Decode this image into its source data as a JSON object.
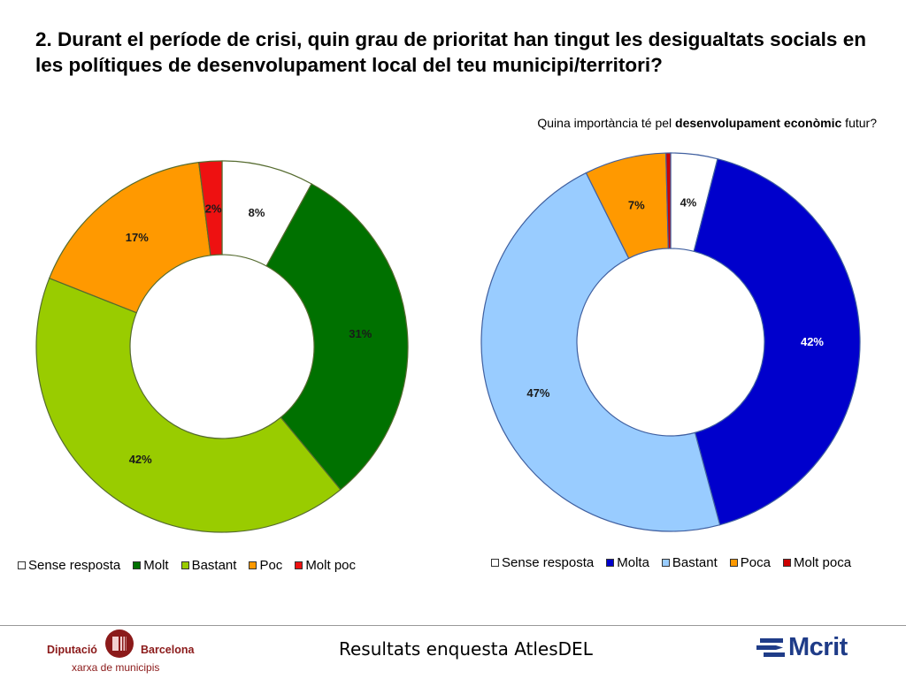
{
  "title": "2. Durant el període de crisi, quin grau de prioritat han tingut les desigualtats socials en les polítiques de desenvolupament local del teu municipi/territori?",
  "subtitle": {
    "prefix": "Quina importància té pel ",
    "bold": "desenvolupament econòmic",
    "suffix": " futur?"
  },
  "footer": {
    "text": "Resultats enquesta AtlesDEL",
    "logo_left_name1": "Diputació",
    "logo_left_name2": "Barcelona",
    "logo_left_sub": "xarxa de municipis",
    "logo_right_name": "Mcrit"
  },
  "chart_data": [
    {
      "type": "pie",
      "donut": true,
      "categories": [
        "Sense resposta",
        "Molt",
        "Bastant",
        "Poc",
        "Molt poc"
      ],
      "values": [
        8,
        31,
        42,
        17,
        2
      ],
      "labels": [
        "8%",
        "31%",
        "42%",
        "17%",
        "2%"
      ],
      "colors": [
        "#ffffff",
        "#007100",
        "#99cc00",
        "#ff9900",
        "#ee1111"
      ],
      "legend_position": "bottom"
    },
    {
      "type": "pie",
      "donut": true,
      "title": "Quina importància té pel desenvolupament econòmic futur?",
      "categories": [
        "Sense resposta",
        "Molta",
        "Bastant",
        "Poca",
        "Molt poca"
      ],
      "values": [
        4,
        42,
        47,
        7,
        0.4
      ],
      "labels": [
        "4%",
        "42%",
        "47%",
        "7%",
        ""
      ],
      "colors": [
        "#ffffff",
        "#0000cc",
        "#99ccff",
        "#ff9900",
        "#cc0000"
      ],
      "legend_position": "bottom"
    }
  ]
}
